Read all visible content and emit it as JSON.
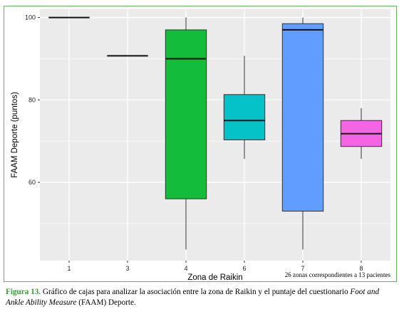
{
  "colors": {
    "frame": "#63b35a",
    "panel": "#ebebeb",
    "grid": "#ffffff",
    "caption_label": "#3a9a3a"
  },
  "chart_data": {
    "type": "boxplot",
    "xlabel": "Zona de Raikin",
    "ylabel": "FAAM Deporte (puntos)",
    "ylim": [
      41,
      102
    ],
    "y_ticks": [
      60,
      80,
      100
    ],
    "grid": true,
    "categories": [
      "1",
      "3",
      "4",
      "6",
      "7",
      "8"
    ],
    "boxes": [
      {
        "category": "1",
        "min": 100,
        "q1": 100,
        "median": 100,
        "q3": 100,
        "max": 100,
        "color": "#f8766d"
      },
      {
        "category": "3",
        "min": 90.7,
        "q1": 90.7,
        "median": 90.7,
        "q3": 90.7,
        "max": 90.7,
        "color": "#b79f00"
      },
      {
        "category": "4",
        "min": 43.7,
        "q1": 56,
        "median": 90,
        "q3": 97,
        "max": 100,
        "color": "#13bc3b"
      },
      {
        "category": "6",
        "min": 65.7,
        "q1": 70.3,
        "median": 75,
        "q3": 81.3,
        "max": 90.7,
        "color": "#04c2c8"
      },
      {
        "category": "7",
        "min": 43.7,
        "q1": 53,
        "median": 97,
        "q3": 98.5,
        "max": 100,
        "color": "#619cff"
      },
      {
        "category": "8",
        "min": 65.7,
        "q1": 68.7,
        "median": 71.8,
        "q3": 75,
        "max": 78,
        "color": "#f564e3"
      }
    ],
    "annotation": "26 zonas correspondientes a 13 pacientes"
  },
  "caption": {
    "label": "Figura 13.",
    "text": " Gráfico de cajas para analizar la asociación entre la zona de Raikin y el puntaje del cuestionario ",
    "italic": "Foot and Ankle Ability Measure",
    "tail": " (FAAM) Deporte."
  }
}
